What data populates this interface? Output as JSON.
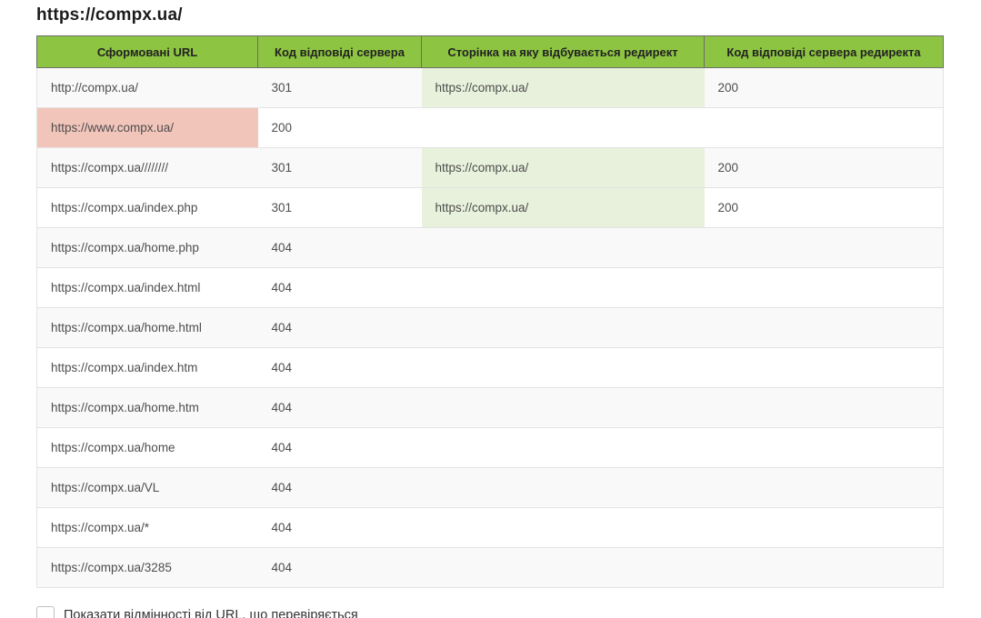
{
  "page": {
    "title": "https://compx.ua/"
  },
  "table": {
    "columns": [
      {
        "label": "Сформовані URL"
      },
      {
        "label": "Код відповіді сервера"
      },
      {
        "label": "Сторінка на яку відбувається редирект"
      },
      {
        "label": "Код відповіді сервера редиректа"
      }
    ],
    "rows": [
      {
        "url": "http://compx.ua/",
        "code": "301",
        "redirect": "https://compx.ua/",
        "redirect_code": "200",
        "url_highlight": "none",
        "redirect_highlight": "green"
      },
      {
        "url": "https://www.compx.ua/",
        "code": "200",
        "redirect": "",
        "redirect_code": "",
        "url_highlight": "red",
        "redirect_highlight": "none"
      },
      {
        "url": "https://compx.ua////////",
        "code": "301",
        "redirect": "https://compx.ua/",
        "redirect_code": "200",
        "url_highlight": "none",
        "redirect_highlight": "green"
      },
      {
        "url": "https://compx.ua/index.php",
        "code": "301",
        "redirect": "https://compx.ua/",
        "redirect_code": "200",
        "url_highlight": "none",
        "redirect_highlight": "green"
      },
      {
        "url": "https://compx.ua/home.php",
        "code": "404",
        "redirect": "",
        "redirect_code": "",
        "url_highlight": "none",
        "redirect_highlight": "none"
      },
      {
        "url": "https://compx.ua/index.html",
        "code": "404",
        "redirect": "",
        "redirect_code": "",
        "url_highlight": "none",
        "redirect_highlight": "none"
      },
      {
        "url": "https://compx.ua/home.html",
        "code": "404",
        "redirect": "",
        "redirect_code": "",
        "url_highlight": "none",
        "redirect_highlight": "none"
      },
      {
        "url": "https://compx.ua/index.htm",
        "code": "404",
        "redirect": "",
        "redirect_code": "",
        "url_highlight": "none",
        "redirect_highlight": "none"
      },
      {
        "url": "https://compx.ua/home.htm",
        "code": "404",
        "redirect": "",
        "redirect_code": "",
        "url_highlight": "none",
        "redirect_highlight": "none"
      },
      {
        "url": "https://compx.ua/home",
        "code": "404",
        "redirect": "",
        "redirect_code": "",
        "url_highlight": "none",
        "redirect_highlight": "none"
      },
      {
        "url": "https://compx.ua/VL",
        "code": "404",
        "redirect": "",
        "redirect_code": "",
        "url_highlight": "none",
        "redirect_highlight": "none"
      },
      {
        "url": "https://compx.ua/*",
        "code": "404",
        "redirect": "",
        "redirect_code": "",
        "url_highlight": "none",
        "redirect_highlight": "none"
      },
      {
        "url": "https://compx.ua/3285",
        "code": "404",
        "redirect": "",
        "redirect_code": "",
        "url_highlight": "none",
        "redirect_highlight": "none"
      }
    ]
  },
  "footer": {
    "checkbox_label": "Показати відмінності від URL, що перевіряється",
    "checkbox_checked": false
  },
  "colors": {
    "header_bg": "#8dc441",
    "header_border": "#6e6e6e",
    "row_border": "#e3e3e3",
    "stripe_bg": "#f9f9f9",
    "highlight_red": "#f2c5bb",
    "highlight_green": "#e8f1dc"
  }
}
